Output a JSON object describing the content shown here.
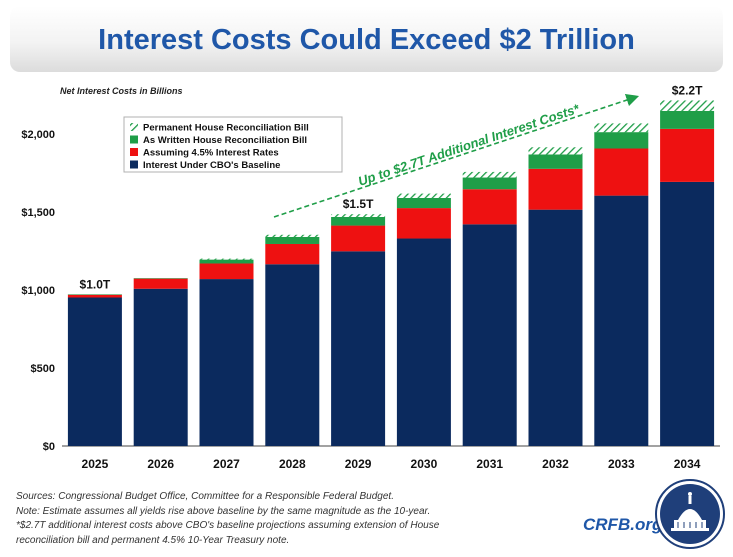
{
  "title": "Interest Costs Could Exceed $2 Trillion",
  "colors": {
    "baseline": "#0b2a5e",
    "rates": "#ee1111",
    "as_written": "#1f9e48",
    "permanent": "#1f9e48",
    "title": "#1f57a8",
    "arrow": "#1f9e48"
  },
  "chart_data": {
    "type": "bar",
    "stacked": true,
    "subtitle": "Net Interest Costs in Billions",
    "categories": [
      "2025",
      "2026",
      "2027",
      "2028",
      "2029",
      "2030",
      "2031",
      "2032",
      "2033",
      "2034"
    ],
    "series": [
      {
        "name": "Interest Under CBO's Baseline",
        "values": [
          952,
          1008,
          1070,
          1165,
          1248,
          1330,
          1421,
          1515,
          1605,
          1693
        ]
      },
      {
        "name": "Assuming 4.5% Interest Rates",
        "values": [
          18,
          65,
          100,
          130,
          165,
          195,
          225,
          262,
          302,
          340
        ]
      },
      {
        "name": "As Written House Reconciliation Bill",
        "values": [
          2,
          3,
          25,
          45,
          55,
          65,
          75,
          92,
          105,
          115
        ]
      },
      {
        "name": "Permanent House Reconciliation Bill",
        "values": [
          0,
          0,
          6,
          14,
          18,
          28,
          36,
          46,
          56,
          67
        ]
      }
    ],
    "ylim": [
      0,
      2200
    ],
    "yticks": [
      0,
      500,
      1000,
      1500,
      2000
    ],
    "ytick_labels": [
      "$0",
      "$500",
      "$1,000",
      "$1,500",
      "$2,000"
    ],
    "annotations": [
      {
        "label": "$1.0T",
        "category": "2025"
      },
      {
        "label": "$1.5T",
        "category": "2029"
      },
      {
        "label": "$2.2T",
        "category": "2034"
      }
    ],
    "arrow_label": "Up to $2.7T Additional Interest Costs*",
    "legend": [
      "Permanent House Reconciliation Bill",
      "As Written House Reconciliation Bill",
      "Assuming 4.5% Interest Rates",
      "Interest Under CBO's Baseline"
    ],
    "legend_position": "top-left",
    "grid": false
  },
  "notes": [
    "Sources: Congressional Budget Office, Committee for a Responsible Federal Budget.",
    "Note: Estimate assumes all yields rise above baseline by the same magnitude as the 10-year.",
    "*$2.7T additional interest costs above CBO's baseline projections assuming extension of House",
    "reconciliation bill and permanent 4.5% 10-Year Treasury note."
  ],
  "brand": "CRFB.org"
}
